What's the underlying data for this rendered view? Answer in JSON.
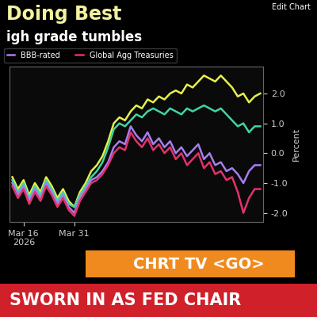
{
  "chart_data": {
    "type": "line",
    "title": "Doing Best",
    "subtitle": "igh grade tumbles",
    "y_label": "Percent",
    "annotations": [
      "Edit Chart",
      "CHRT TV <GO>",
      "SWORN IN AS FED CHAIR"
    ],
    "categories": [
      null,
      null,
      "Mar 16\n2026",
      null,
      null,
      null,
      null,
      null,
      null,
      null,
      null,
      "Mar 31",
      null,
      null,
      null,
      null,
      null,
      null,
      null,
      null,
      null,
      null,
      null,
      null,
      null,
      null,
      null,
      null,
      null,
      null,
      null,
      null,
      null,
      null,
      null,
      null,
      null,
      null,
      null,
      null,
      null,
      null,
      null,
      null,
      null
    ],
    "series": [
      {
        "color": "#e6ef4c",
        "values": [
          -0.8,
          -1.2,
          -0.9,
          -1.4,
          -1.0,
          -1.3,
          -0.8,
          -1.1,
          -1.5,
          -1.2,
          -1.6,
          -1.8,
          -1.3,
          -1.0,
          -0.6,
          -0.4,
          -0.1,
          0.4,
          1.0,
          1.2,
          1.1,
          1.4,
          1.6,
          1.5,
          1.8,
          1.7,
          1.9,
          1.8,
          2.0,
          2.1,
          2.0,
          2.3,
          2.2,
          2.4,
          2.6,
          2.5,
          2.4,
          2.6,
          2.4,
          2.2,
          1.9,
          2.0,
          1.7,
          1.9,
          2.0
        ]
      },
      {
        "color": "#3fd6a0",
        "values": [
          -0.9,
          -1.3,
          -1.0,
          -1.5,
          -1.1,
          -1.4,
          -0.9,
          -1.2,
          -1.6,
          -1.3,
          -1.7,
          -1.8,
          -1.4,
          -1.1,
          -0.8,
          -0.6,
          -0.3,
          0.2,
          0.8,
          1.0,
          0.9,
          1.1,
          1.3,
          1.2,
          1.4,
          1.5,
          1.4,
          1.3,
          1.5,
          1.4,
          1.3,
          1.5,
          1.4,
          1.5,
          1.6,
          1.5,
          1.4,
          1.5,
          1.3,
          1.1,
          0.9,
          1.0,
          0.7,
          0.9,
          0.9
        ]
      },
      {
        "name": "BBB-rated",
        "color": "#a77df2",
        "values": [
          -1.0,
          -1.4,
          -1.1,
          -1.6,
          -1.2,
          -1.5,
          -1.0,
          -1.3,
          -1.7,
          -1.4,
          -1.8,
          -2.0,
          -1.5,
          -1.2,
          -0.9,
          -0.8,
          -0.6,
          -0.3,
          0.2,
          0.4,
          0.3,
          0.9,
          0.6,
          0.4,
          0.7,
          0.3,
          0.5,
          0.2,
          0.4,
          0.0,
          0.2,
          -0.1,
          0.1,
          0.3,
          -0.2,
          0.0,
          -0.4,
          -0.3,
          -0.6,
          -0.5,
          -0.7,
          -1.0,
          -0.6,
          -0.4,
          -0.4
        ]
      },
      {
        "name": "Global Agg Treasuries",
        "color": "#e0336a",
        "values": [
          -1.1,
          -1.5,
          -1.2,
          -1.7,
          -1.3,
          -1.6,
          -1.1,
          -1.4,
          -1.8,
          -1.5,
          -1.9,
          -2.1,
          -1.6,
          -1.3,
          -1.0,
          -0.9,
          -0.7,
          -0.4,
          0.0,
          0.2,
          0.1,
          0.7,
          0.4,
          0.2,
          0.5,
          0.1,
          0.3,
          0.0,
          0.2,
          -0.2,
          0.0,
          -0.4,
          -0.2,
          0.0,
          -0.5,
          -0.3,
          -0.7,
          -0.6,
          -0.9,
          -0.8,
          -1.3,
          -2.0,
          -1.5,
          -1.2,
          -1.2
        ]
      }
    ],
    "ylim": [
      -2.3,
      2.9
    ],
    "yticks": [
      {
        "value": -2,
        "label": "-2.0"
      },
      {
        "value": -1,
        "label": "-1.0"
      },
      {
        "value": 0,
        "label": "0.0"
      },
      {
        "value": 1,
        "label": "1.0"
      },
      {
        "value": 2,
        "label": "2.0"
      }
    ],
    "grid": false,
    "legend": "upper left"
  }
}
